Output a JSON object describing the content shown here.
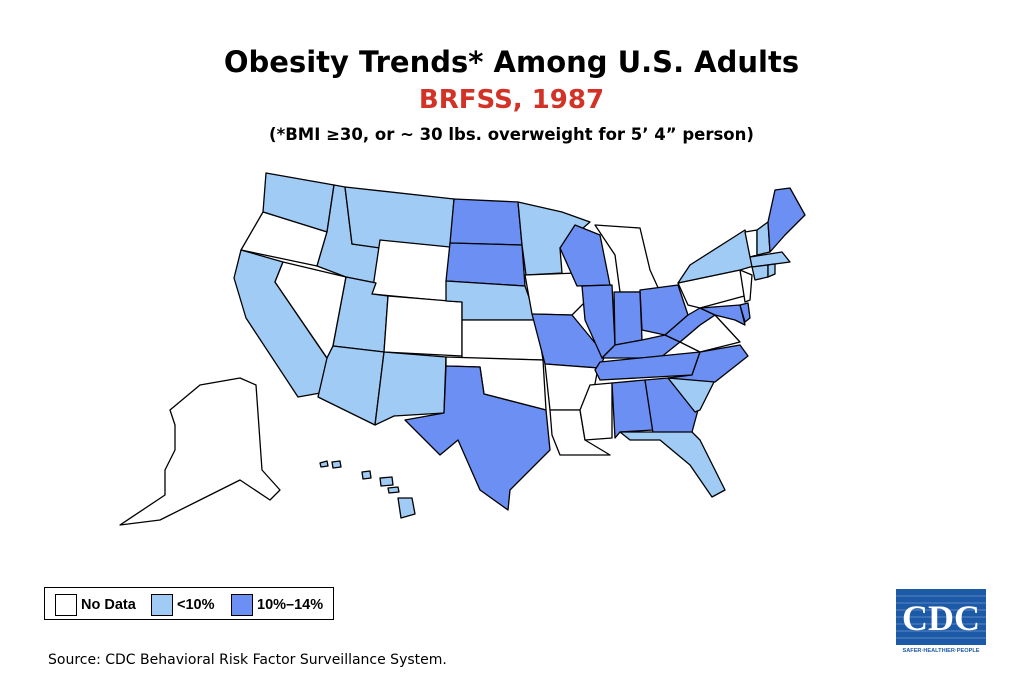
{
  "title": "Obesity Trends* Among U.S. Adults",
  "subtitle": "BRFSS, 1987",
  "subtitle_color": "#d33227",
  "note": "(*BMI ≥30, or ~ 30 lbs. overweight for 5’ 4” person)",
  "legend": [
    {
      "key": "nodata",
      "label": "No Data",
      "color": "#ffffff"
    },
    {
      "key": "lt10",
      "label": "<10%",
      "color": "#9fcbf5"
    },
    {
      "key": "r10_14",
      "label": "10%–14%",
      "color": "#6b8ff2"
    }
  ],
  "source": "Source: CDC Behavioral Risk Factor Surveillance System.",
  "logo": {
    "text": "CDC",
    "tagline": "SAFER·HEALTHIER·PEOPLE",
    "color": "#1c5aa8"
  },
  "map_data": {
    "nodata": [
      "OR",
      "NV",
      "WY",
      "CO",
      "KS",
      "OK",
      "AR",
      "IA",
      "MI",
      "LA",
      "MS",
      "VA",
      "PA",
      "VT",
      "NJ",
      "AK"
    ],
    "lt10": [
      "WA",
      "ID",
      "MT",
      "CA",
      "UT",
      "AZ",
      "NM",
      "NE",
      "MN",
      "NY",
      "NH",
      "MA",
      "CT",
      "RI",
      "SC",
      "FL",
      "HI"
    ],
    "r10_14": [
      "ND",
      "SD",
      "TX",
      "MO",
      "WI",
      "IL",
      "IN",
      "OH",
      "KY",
      "TN",
      "WV",
      "MD",
      "DE",
      "NC",
      "AL",
      "GA",
      "ME"
    ]
  }
}
